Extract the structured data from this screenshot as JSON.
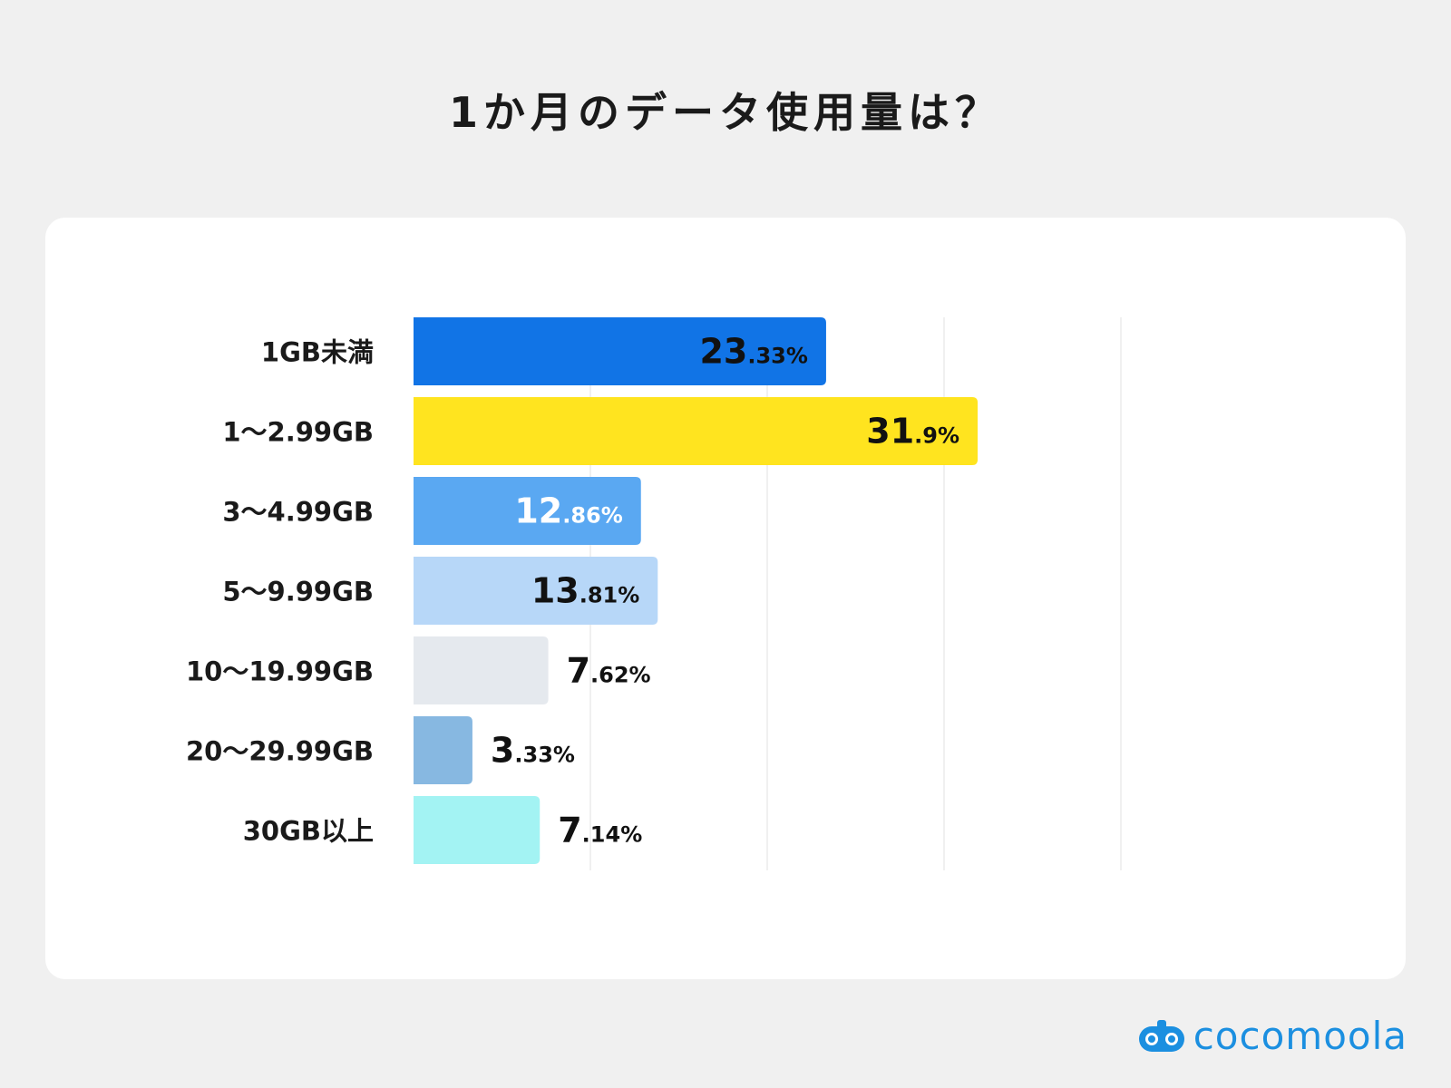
{
  "chart_data": {
    "type": "bar",
    "orientation": "horizontal",
    "title": "1か月のデータ使用量は？",
    "categories": [
      "1GB未満",
      "1〜2.99GB",
      "3〜4.99GB",
      "5〜9.99GB",
      "10〜19.99GB",
      "20〜29.99GB",
      "30GB以上"
    ],
    "values": [
      23.33,
      31.9,
      12.86,
      13.81,
      7.62,
      3.33,
      7.14
    ],
    "value_labels": [
      {
        "int": "23",
        "dec": ".33%"
      },
      {
        "int": "31",
        "dec": ".9%"
      },
      {
        "int": "12",
        "dec": ".86%"
      },
      {
        "int": "13",
        "dec": ".81%"
      },
      {
        "int": "7",
        "dec": ".62%"
      },
      {
        "int": "3",
        "dec": ".33%"
      },
      {
        "int": "7",
        "dec": ".14%"
      }
    ],
    "colors": [
      "#1174e6",
      "#ffe41f",
      "#5aa8f2",
      "#b7d7f8",
      "#e5e9ee",
      "#87b8e1",
      "#a3f3f3"
    ],
    "label_colors": [
      "#111111",
      "#111111",
      "#ffffff",
      "#111111",
      "#111111",
      "#111111",
      "#111111"
    ],
    "xlim": [
      0,
      40
    ],
    "grid": true
  },
  "brand": {
    "name": "cocomoola",
    "icon": "game-controller-icon",
    "color": "#1b8fe0"
  }
}
